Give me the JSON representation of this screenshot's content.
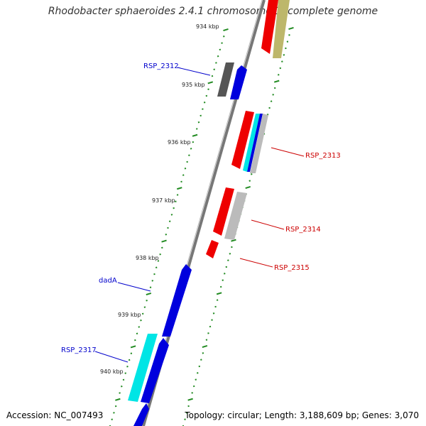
{
  "title": "Rhodobacter sphaeroides 2.4.1 chromosome 1, complete genome",
  "footer": {
    "accession": "Accession: NC_007493",
    "topology": "Topology: circular; Length: 3,188,609 bp; Genes: 3,070"
  },
  "ticks": [
    "934 kbp",
    "935 kbp",
    "936 kbp",
    "937 kbp",
    "938 kbp",
    "939 kbp",
    "940 kbp"
  ],
  "gene_labels": [
    {
      "id": "RSP_2312",
      "text": "RSP_2312",
      "strand": "forward",
      "color": "#0000cc"
    },
    {
      "id": "RSP_2313",
      "text": "RSP_2313",
      "strand": "reverse",
      "color": "#cc0000"
    },
    {
      "id": "RSP_2314",
      "text": "RSP_2314",
      "strand": "reverse",
      "color": "#cc0000"
    },
    {
      "id": "RSP_2315",
      "text": "RSP_2315",
      "strand": "reverse",
      "color": "#cc0000"
    },
    {
      "id": "dadA",
      "text": "dadA",
      "strand": "forward",
      "color": "#0000cc"
    },
    {
      "id": "RSP_2317",
      "text": "RSP_2317",
      "strand": "forward",
      "color": "#0000cc"
    }
  ],
  "colors": {
    "backbone": "#888888",
    "forward_gene": "#0000dd",
    "reverse_gene": "#ee0000",
    "tick_marks": "#228b22",
    "gray_feature": "#555555",
    "light_gray_feature": "#bbbbbb",
    "olive_feature": "#bdb76b",
    "cyan_feature": "#00e5e5"
  }
}
